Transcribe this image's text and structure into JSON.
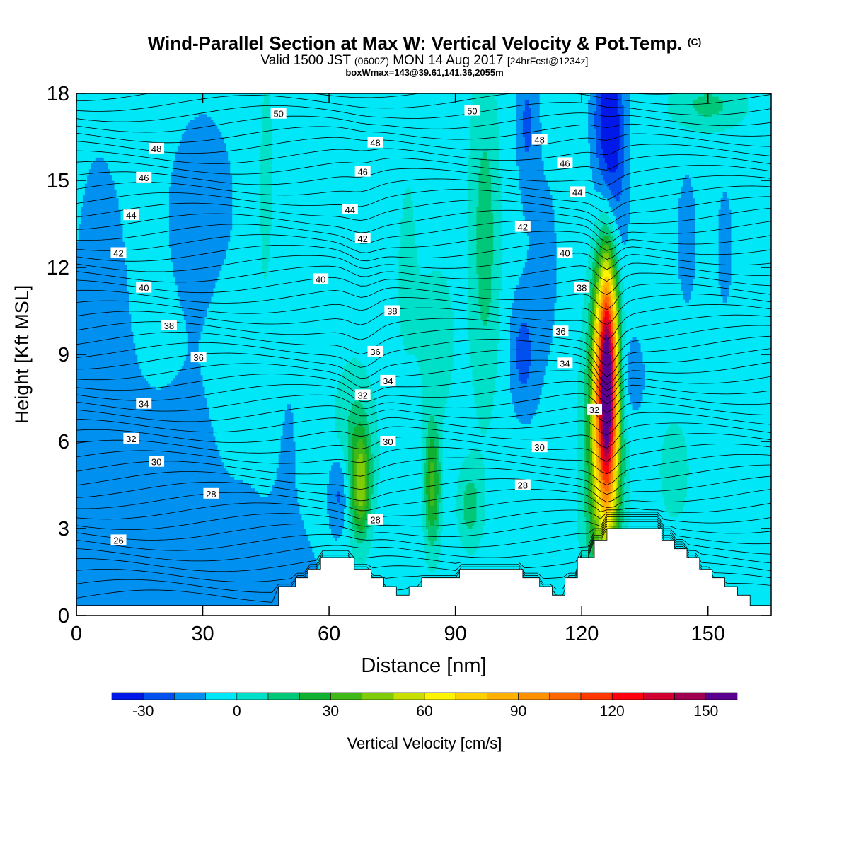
{
  "title": {
    "main": "Wind-Parallel Section at Max W: Vertical Velocity & Pot.Temp.",
    "copyright": "(C)"
  },
  "subtitle": {
    "valid": "Valid 1500 JST",
    "utc": "(0600Z)",
    "date": "MON 14 Aug 2017",
    "fcst": "[24hrFcst@1234z]"
  },
  "subtitle2": "boxWmax=143@39.61,141.36,2055m",
  "chart_data": {
    "type": "heatmap",
    "xlabel": "Distance [nm]",
    "ylabel": "Height [Kft MSL]",
    "xlim": [
      0,
      165
    ],
    "ylim": [
      0,
      18
    ],
    "xticks": [
      "0",
      "30",
      "60",
      "90",
      "120",
      "150"
    ],
    "yticks": [
      "0",
      "3",
      "6",
      "9",
      "12",
      "15",
      "18"
    ],
    "colorbar": {
      "label": "Vertical Velocity [cm/s]",
      "tick_labels": [
        "-30",
        "0",
        "30",
        "60",
        "90",
        "120",
        "150"
      ],
      "tick_values": [
        -30,
        0,
        30,
        60,
        90,
        120,
        150
      ],
      "range": [
        -40,
        160
      ],
      "levels": [
        -40,
        -30,
        -20,
        -10,
        0,
        10,
        20,
        30,
        40,
        50,
        60,
        70,
        80,
        90,
        100,
        110,
        120,
        130,
        140,
        150,
        160
      ],
      "colors": [
        "#0018e8",
        "#0050f0",
        "#0090f0",
        "#00e8f8",
        "#00e0c8",
        "#00c878",
        "#10b030",
        "#40b818",
        "#80cc08",
        "#c8e000",
        "#fff400",
        "#ffd000",
        "#ffb000",
        "#ff9000",
        "#ff6800",
        "#ff3800",
        "#ff0010",
        "#d00030",
        "#a00050",
        "#5a0090"
      ]
    },
    "w_field": {
      "background": -5,
      "cells": [
        {
          "x": 126,
          "y": 8.3,
          "sx": 1.8,
          "sy": 3.0,
          "v": 148
        },
        {
          "x": 125,
          "y": 5.8,
          "sx": 3.0,
          "sy": 3.5,
          "v": 45
        },
        {
          "x": 67.5,
          "y": 4.5,
          "sx": 1.6,
          "sy": 1.3,
          "v": 38
        },
        {
          "x": 84.5,
          "y": 4.5,
          "sx": 1.3,
          "sy": 1.5,
          "v": 35
        },
        {
          "x": 97,
          "y": 13,
          "sx": 2.5,
          "sy": 4,
          "v": 15
        },
        {
          "x": 93.5,
          "y": 3.8,
          "sx": 2.0,
          "sy": 1.0,
          "v": 15
        },
        {
          "x": 66,
          "y": 5.8,
          "sx": 3.5,
          "sy": 2.0,
          "v": 12
        },
        {
          "x": 150,
          "y": 17.6,
          "sx": 6,
          "sy": 0.6,
          "v": 13
        },
        {
          "x": 86,
          "y": 9.5,
          "sx": 3,
          "sy": 2,
          "v": 5
        },
        {
          "x": 30,
          "y": 14,
          "sx": 9,
          "sy": 4,
          "v": -12
        },
        {
          "x": 5,
          "y": 9,
          "sx": 7,
          "sy": 8,
          "v": -12
        },
        {
          "x": 27,
          "y": 4,
          "sx": 15,
          "sy": 3,
          "v": -13
        },
        {
          "x": 36,
          "y": 1,
          "sx": 18,
          "sy": 1.5,
          "v": -14
        },
        {
          "x": 62.5,
          "y": 4.3,
          "sx": 1.8,
          "sy": 1.0,
          "v": -27
        },
        {
          "x": 106,
          "y": 9,
          "sx": 2,
          "sy": 1.3,
          "v": -22
        },
        {
          "x": 127,
          "y": 15,
          "sx": 2.5,
          "sy": 3.2,
          "v": -33
        },
        {
          "x": 126,
          "y": 17.3,
          "sx": 2.2,
          "sy": 1.5,
          "v": -24
        },
        {
          "x": 131,
          "y": 8.2,
          "sx": 3,
          "sy": 1.2,
          "v": -18
        },
        {
          "x": 107,
          "y": 17,
          "sx": 1.5,
          "sy": 1.5,
          "v": -20
        },
        {
          "x": 145,
          "y": 13,
          "sx": 1.5,
          "sy": 1.5,
          "v": -20
        },
        {
          "x": 154,
          "y": 12.7,
          "sx": 1.2,
          "sy": 1.4,
          "v": -18
        },
        {
          "x": 111,
          "y": 12,
          "sx": 5,
          "sy": 5,
          "v": -11
        },
        {
          "x": 72,
          "y": 15,
          "sx": 5,
          "sy": 3,
          "v": -10
        },
        {
          "x": 50,
          "y": 8,
          "sx": 4,
          "sy": 5,
          "v": -9
        },
        {
          "x": 142,
          "y": 5,
          "sx": 4,
          "sy": 2,
          "v": 2
        },
        {
          "x": 37,
          "y": 8,
          "sx": 3,
          "sy": 2,
          "v": 2
        },
        {
          "x": 78,
          "y": 13,
          "sx": 3,
          "sy": 4,
          "v": 3
        },
        {
          "x": 45,
          "y": 14,
          "sx": 2.5,
          "sy": 5,
          "v": 4
        }
      ]
    },
    "theta_contours": {
      "labels": [
        {
          "x": 48,
          "y": 17.3,
          "v": "50"
        },
        {
          "x": 94,
          "y": 17.4,
          "v": "50"
        },
        {
          "x": 19,
          "y": 16.1,
          "v": "48"
        },
        {
          "x": 71,
          "y": 16.3,
          "v": "48"
        },
        {
          "x": 110,
          "y": 16.4,
          "v": "48"
        },
        {
          "x": 16,
          "y": 15.1,
          "v": "46"
        },
        {
          "x": 68,
          "y": 15.3,
          "v": "46"
        },
        {
          "x": 116,
          "y": 15.6,
          "v": "46"
        },
        {
          "x": 13,
          "y": 13.8,
          "v": "44"
        },
        {
          "x": 65,
          "y": 14.0,
          "v": "44"
        },
        {
          "x": 119,
          "y": 14.6,
          "v": "44"
        },
        {
          "x": 10,
          "y": 12.5,
          "v": "42"
        },
        {
          "x": 68,
          "y": 13.0,
          "v": "42"
        },
        {
          "x": 106,
          "y": 13.4,
          "v": "42"
        },
        {
          "x": 16,
          "y": 11.3,
          "v": "40"
        },
        {
          "x": 58,
          "y": 11.6,
          "v": "40"
        },
        {
          "x": 116,
          "y": 12.5,
          "v": "40"
        },
        {
          "x": 22,
          "y": 10.0,
          "v": "38"
        },
        {
          "x": 75,
          "y": 10.5,
          "v": "38"
        },
        {
          "x": 120,
          "y": 11.3,
          "v": "38"
        },
        {
          "x": 29,
          "y": 8.9,
          "v": "36"
        },
        {
          "x": 71,
          "y": 9.1,
          "v": "36"
        },
        {
          "x": 115,
          "y": 9.8,
          "v": "36"
        },
        {
          "x": 16,
          "y": 7.3,
          "v": "34"
        },
        {
          "x": 74,
          "y": 8.1,
          "v": "34"
        },
        {
          "x": 116,
          "y": 8.7,
          "v": "34"
        },
        {
          "x": 13,
          "y": 6.1,
          "v": "32"
        },
        {
          "x": 68,
          "y": 7.6,
          "v": "32"
        },
        {
          "x": 123,
          "y": 7.1,
          "v": "32"
        },
        {
          "x": 19,
          "y": 5.3,
          "v": "30"
        },
        {
          "x": 74,
          "y": 6.0,
          "v": "30"
        },
        {
          "x": 110,
          "y": 5.8,
          "v": "30"
        },
        {
          "x": 32,
          "y": 4.2,
          "v": "28"
        },
        {
          "x": 71,
          "y": 3.3,
          "v": "28"
        },
        {
          "x": 106,
          "y": 4.5,
          "v": "28"
        },
        {
          "x": 10,
          "y": 2.6,
          "v": "26"
        }
      ]
    },
    "terrain_nm_kft": [
      [
        0,
        0.35
      ],
      [
        48,
        0.35
      ],
      [
        48,
        1.0
      ],
      [
        52,
        1.0
      ],
      [
        52,
        1.3
      ],
      [
        55,
        1.3
      ],
      [
        55,
        1.6
      ],
      [
        58,
        1.6
      ],
      [
        58,
        2.0
      ],
      [
        66,
        2.0
      ],
      [
        66,
        1.6
      ],
      [
        70,
        1.6
      ],
      [
        70,
        1.3
      ],
      [
        73,
        1.3
      ],
      [
        73,
        1.0
      ],
      [
        76,
        1.0
      ],
      [
        76,
        0.7
      ],
      [
        79,
        0.7
      ],
      [
        79,
        1.0
      ],
      [
        82,
        1.0
      ],
      [
        82,
        1.3
      ],
      [
        91,
        1.3
      ],
      [
        91,
        1.6
      ],
      [
        106,
        1.6
      ],
      [
        106,
        1.3
      ],
      [
        110,
        1.3
      ],
      [
        110,
        1.0
      ],
      [
        113,
        1.0
      ],
      [
        113,
        0.7
      ],
      [
        116,
        0.7
      ],
      [
        116,
        1.3
      ],
      [
        119,
        1.3
      ],
      [
        119,
        2.0
      ],
      [
        123,
        2.0
      ],
      [
        123,
        2.6
      ],
      [
        126,
        2.6
      ],
      [
        126,
        3.0
      ],
      [
        139,
        3.0
      ],
      [
        139,
        2.6
      ],
      [
        142,
        2.6
      ],
      [
        142,
        2.3
      ],
      [
        145,
        2.3
      ],
      [
        145,
        2.0
      ],
      [
        148,
        2.0
      ],
      [
        148,
        1.6
      ],
      [
        151,
        1.6
      ],
      [
        151,
        1.3
      ],
      [
        154,
        1.3
      ],
      [
        154,
        1.0
      ],
      [
        157,
        1.0
      ],
      [
        157,
        0.7
      ],
      [
        160,
        0.7
      ],
      [
        160,
        0.35
      ],
      [
        165,
        0.35
      ]
    ]
  }
}
